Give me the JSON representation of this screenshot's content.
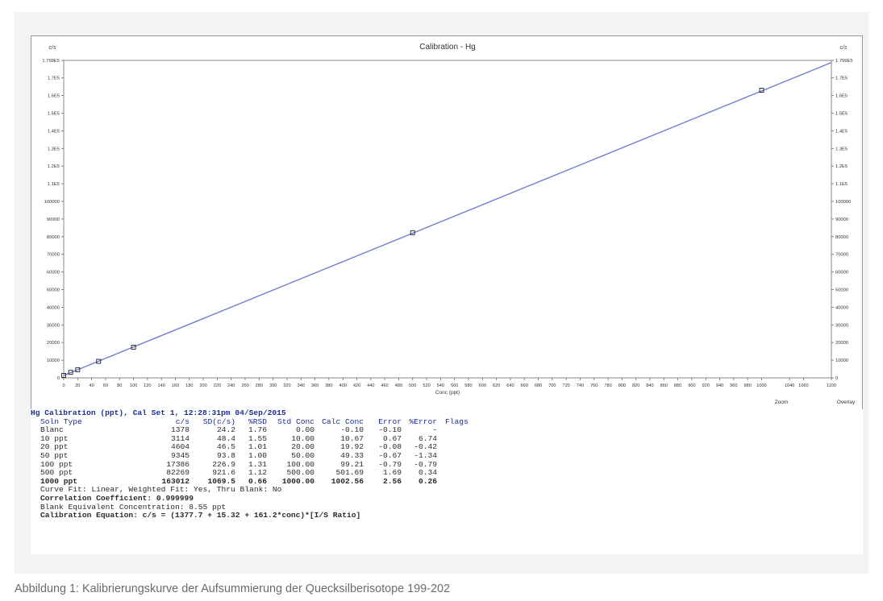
{
  "chart_data": {
    "type": "line",
    "title": "Calibration - Hg",
    "xlabel": "Conc (ppt)",
    "ylabel_left": "c/s",
    "ylabel_right": "c/s",
    "xlim": [
      0,
      1100
    ],
    "ylim": [
      0,
      179900
    ],
    "x_ticks": [
      0,
      20,
      40,
      60,
      80,
      100,
      120,
      140,
      160,
      180,
      200,
      220,
      240,
      260,
      280,
      300,
      320,
      340,
      360,
      380,
      400,
      420,
      440,
      460,
      480,
      500,
      520,
      540,
      560,
      580,
      600,
      620,
      640,
      660,
      680,
      700,
      720,
      740,
      760,
      780,
      800,
      820,
      840,
      860,
      880,
      900,
      920,
      940,
      960,
      980,
      1000,
      1040,
      1060,
      1100
    ],
    "y_ticks": [
      {
        "v": 0,
        "label": "0"
      },
      {
        "v": 10000,
        "label": "10000"
      },
      {
        "v": 20000,
        "label": "20000"
      },
      {
        "v": 30000,
        "label": "30000"
      },
      {
        "v": 40000,
        "label": "40000"
      },
      {
        "v": 50000,
        "label": "50000"
      },
      {
        "v": 60000,
        "label": "60000"
      },
      {
        "v": 70000,
        "label": "70000"
      },
      {
        "v": 80000,
        "label": "80000"
      },
      {
        "v": 90000,
        "label": "90000"
      },
      {
        "v": 100000,
        "label": "100000"
      },
      {
        "v": 110000,
        "label": "1.1E5"
      },
      {
        "v": 120000,
        "label": "1.2E5"
      },
      {
        "v": 130000,
        "label": "1.3E5"
      },
      {
        "v": 140000,
        "label": "1.4E5"
      },
      {
        "v": 150000,
        "label": "1.5E5"
      },
      {
        "v": 160000,
        "label": "1.6E5"
      },
      {
        "v": 170000,
        "label": "1.7E5"
      },
      {
        "v": 179900,
        "label": "1.799E5"
      }
    ],
    "points": [
      {
        "x": 0,
        "y": 1378
      },
      {
        "x": 10,
        "y": 3114
      },
      {
        "x": 20,
        "y": 4604
      },
      {
        "x": 50,
        "y": 9345
      },
      {
        "x": 100,
        "y": 17386
      },
      {
        "x": 500,
        "y": 82269
      },
      {
        "x": 1000,
        "y": 163012
      }
    ],
    "fit_line": {
      "x": [
        0,
        1100
      ],
      "y": [
        1378,
        178700
      ]
    },
    "line_color": "#6f7fcf",
    "grid": false,
    "footer_buttons": [
      "Zoom",
      "Overlay"
    ]
  },
  "results": {
    "header": "Hg Calibration (ppt), Cal Set 1, 12:28:31pm 04/Sep/2015",
    "columns": [
      "Soln Type",
      "c/s",
      "SD(c/s)",
      "%RSD",
      "Std Conc",
      "Calc Conc",
      "Error",
      "%Error",
      "Flags"
    ],
    "rows": [
      [
        "Blanc",
        "1378",
        "24.2",
        "1.76",
        "0.00",
        "-0.10",
        "-0.10",
        "-"
      ],
      [
        "10 ppt",
        "3114",
        "48.4",
        "1.55",
        "10.00",
        "10.67",
        "0.67",
        "6.74"
      ],
      [
        "20 ppt",
        "4604",
        "46.5",
        "1.01",
        "20.00",
        "19.92",
        "-0.08",
        "-0.42"
      ],
      [
        "50 ppt",
        "9345",
        "93.8",
        "1.00",
        "50.00",
        "49.33",
        "-0.67",
        "-1.34"
      ],
      [
        "100 ppt",
        "17386",
        "226.9",
        "1.31",
        "100.00",
        "99.21",
        "-0.79",
        "-0.79"
      ],
      [
        "500 ppt",
        "82269",
        "921.6",
        "1.12",
        "500.00",
        "501.69",
        "1.69",
        "0.34"
      ],
      [
        "1000 ppt",
        "163012",
        "1069.5",
        "0.66",
        "1000.00",
        "1002.56",
        "2.56",
        "0.26"
      ]
    ],
    "curve_fit": "Curve Fit: Linear, Weighted Fit: Yes, Thru Blank: No",
    "correlation": "Correlation Coefficient: 0.999999",
    "blank_equiv": "Blank Equivalent Concentration: 8.55 ppt",
    "equation": "Calibration Equation: c/s = (1377.7 + 15.32 + 161.2*conc)*[I/S Ratio]"
  },
  "caption": "Abbildung 1: Kalibrierungskurve der Aufsummierung der Quecksilberisotope 199-202"
}
